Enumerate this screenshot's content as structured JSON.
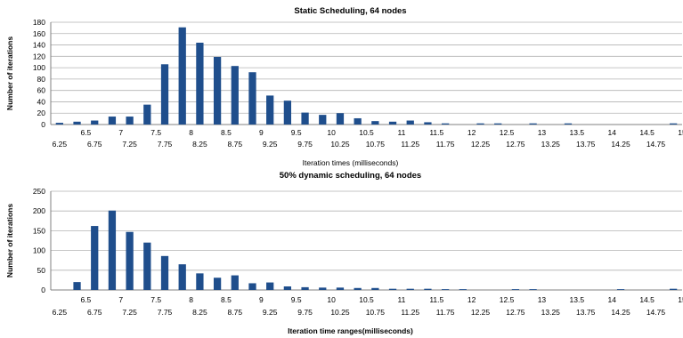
{
  "chart_data": [
    {
      "type": "bar",
      "title": "Static Scheduling, 64 nodes",
      "xlabel": "Iteration times (milliseconds)",
      "ylabel": "Number of iterations",
      "ylim": [
        0,
        180
      ],
      "yticks": [
        0,
        20,
        40,
        60,
        80,
        100,
        120,
        140,
        160,
        180
      ],
      "grid": true,
      "legend": "none",
      "bar_color": "#1f4e8c",
      "categories": [
        "6.25",
        "6.5",
        "6.75",
        "7",
        "7.25",
        "7.5",
        "7.75",
        "8",
        "8.25",
        "8.5",
        "8.75",
        "9",
        "9.25",
        "9.5",
        "9.75",
        "10",
        "10.25",
        "10.5",
        "10.75",
        "11",
        "11.25",
        "11.5",
        "11.75",
        "12",
        "12.25",
        "12.5",
        "12.75",
        "13",
        "13.25",
        "13.5",
        "13.75",
        "14",
        "14.25",
        "14.5",
        "14.75",
        "15"
      ],
      "values": [
        3,
        5,
        7,
        14,
        14,
        35,
        106,
        171,
        144,
        119,
        103,
        92,
        51,
        42,
        21,
        17,
        20,
        11,
        6,
        5,
        7,
        4,
        2,
        0,
        2,
        2,
        0,
        2,
        0,
        2,
        0,
        0,
        0,
        0,
        0,
        2
      ]
    },
    {
      "type": "bar",
      "title": "50% dynamic scheduling, 64 nodes",
      "xlabel": "Iteration time ranges(milliseconds)",
      "ylabel": "Number of iterations",
      "ylim": [
        0,
        250
      ],
      "yticks": [
        0,
        50,
        100,
        150,
        200,
        250
      ],
      "grid": true,
      "legend": "none",
      "bar_color": "#1f4e8c",
      "categories": [
        "6.25",
        "6.5",
        "6.75",
        "7",
        "7.25",
        "7.5",
        "7.75",
        "8",
        "8.25",
        "8.5",
        "8.75",
        "9",
        "9.25",
        "9.5",
        "9.75",
        "10",
        "10.25",
        "10.5",
        "10.75",
        "11",
        "11.25",
        "11.5",
        "11.75",
        "12",
        "12.25",
        "12.5",
        "12.75",
        "13",
        "13.25",
        "13.5",
        "13.75",
        "14",
        "14.25",
        "14.5",
        "14.75",
        "15"
      ],
      "values": [
        0,
        20,
        162,
        201,
        147,
        120,
        86,
        65,
        42,
        31,
        37,
        17,
        19,
        9,
        7,
        6,
        6,
        5,
        5,
        3,
        3,
        3,
        2,
        2,
        0,
        0,
        2,
        2,
        0,
        0,
        0,
        0,
        2,
        0,
        0,
        3
      ]
    }
  ]
}
